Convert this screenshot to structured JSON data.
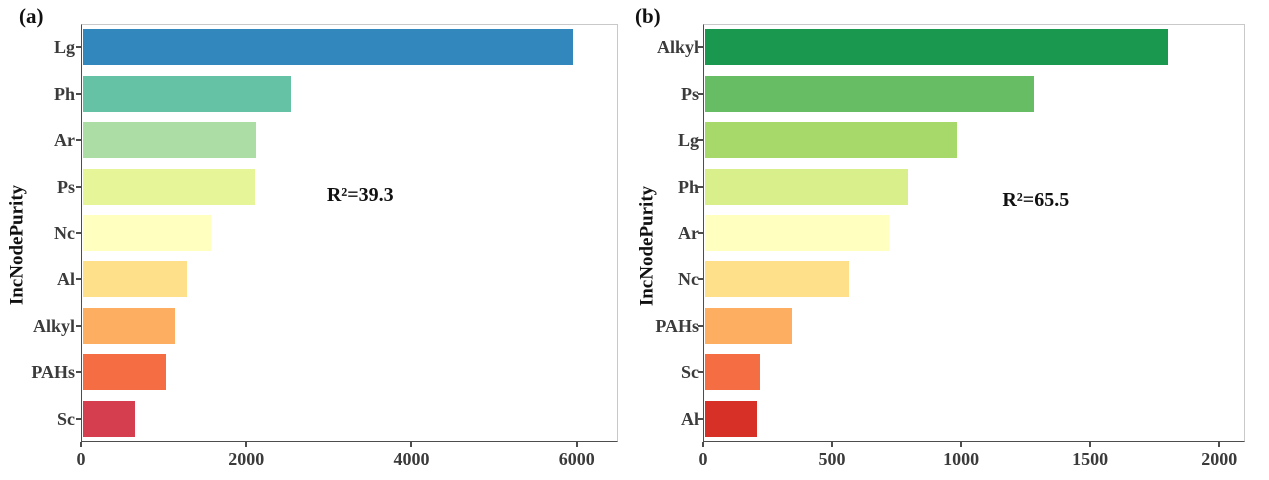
{
  "figure": {
    "background": "#ffffff",
    "axis_color": "#4d4d4d",
    "box_border_color": "#c9c9c9",
    "text_color": "#3b3b3b"
  },
  "chart_data": [
    {
      "type": "bar",
      "orientation": "horizontal",
      "panel_label": "(a)",
      "ylabel": "IncNodePurity",
      "xlabel": "",
      "annotation": "R²=39.3",
      "categories": [
        "Lg",
        "Ph",
        "Ar",
        "Ps",
        "Nc",
        "Al",
        "Alkyl",
        "PAHs",
        "Sc"
      ],
      "values": [
        5940,
        2520,
        2100,
        2090,
        1560,
        1260,
        1120,
        1010,
        640
      ],
      "colors": [
        "#3288BD",
        "#66C2A5",
        "#ABDDA4",
        "#E6F598",
        "#FFFFBF",
        "#FEE08B",
        "#FDAE61",
        "#F46D43",
        "#D53E4F"
      ],
      "xlim": [
        0,
        6500
      ],
      "xticks": [
        0,
        2000,
        4000,
        6000
      ],
      "grid": false,
      "legend": false,
      "annotation_pos": {
        "x": 0.52,
        "y": 0.41
      }
    },
    {
      "type": "bar",
      "orientation": "horizontal",
      "panel_label": "(b)",
      "ylabel": "IncNodePurity",
      "xlabel": "",
      "annotation": "R²=65.5",
      "categories": [
        "Alkyl",
        "Ps",
        "Lg",
        "Ph",
        "Ar",
        "Nc",
        "PAHs",
        "Sc",
        "Al"
      ],
      "values": [
        1795,
        1275,
        980,
        790,
        715,
        560,
        340,
        215,
        205
      ],
      "colors": [
        "#1A9850",
        "#66BD63",
        "#A6D96A",
        "#D9EF8B",
        "#FFFFBF",
        "#FEE08B",
        "#FDAE61",
        "#F46D43",
        "#D73027"
      ],
      "xlim": [
        0,
        2100
      ],
      "xticks": [
        0,
        500,
        1000,
        1500,
        2000
      ],
      "grid": false,
      "legend": false,
      "annotation_pos": {
        "x": 0.614,
        "y": 0.42
      }
    }
  ]
}
